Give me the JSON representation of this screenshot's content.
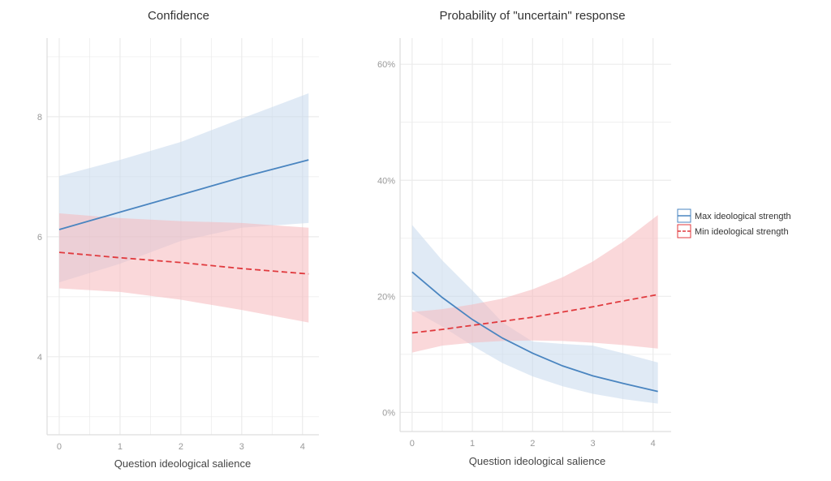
{
  "colors": {
    "max_line": "#4a85c0",
    "max_ribbon": "#c6d9ec",
    "min_line": "#e03a3e",
    "min_ribbon": "#f5b8bb",
    "grid": "#ebebeb",
    "axis": "#dddddd"
  },
  "legend": {
    "placement": "right",
    "items": [
      {
        "label": "Max ideological strength",
        "linetype": "solid",
        "series": "max"
      },
      {
        "label": "Min ideological strength",
        "linetype": "dashed",
        "series": "min"
      }
    ]
  },
  "chart_data": [
    {
      "type": "line",
      "title": "Confidence",
      "xlabel": "Question ideological salience",
      "ylabel": "",
      "xlim": [
        -0.2,
        4.27
      ],
      "ylim": [
        2.7,
        9.31
      ],
      "xticks": [
        0,
        1,
        2,
        3,
        4
      ],
      "xtick_labels": [
        "0",
        "1",
        "2",
        "3",
        "4"
      ],
      "yticks": [
        4,
        6,
        8
      ],
      "ytick_labels": [
        "4",
        "6",
        "8"
      ],
      "grid": true,
      "x": [
        0,
        1,
        2,
        3,
        4.1
      ],
      "series": [
        {
          "name": "Max ideological strength",
          "key": "max",
          "linetype": "solid",
          "values": [
            6.12,
            6.41,
            6.7,
            6.99,
            7.28
          ],
          "lower": [
            5.24,
            5.55,
            5.93,
            6.15,
            6.23
          ],
          "upper": [
            7.01,
            7.28,
            7.58,
            7.97,
            8.39
          ]
        },
        {
          "name": "Min ideological strength",
          "key": "min",
          "linetype": "dashed",
          "values": [
            5.74,
            5.65,
            5.57,
            5.47,
            5.38
          ],
          "lower": [
            5.14,
            5.08,
            4.95,
            4.78,
            4.57
          ],
          "upper": [
            6.39,
            6.31,
            6.26,
            6.23,
            6.15
          ]
        }
      ]
    },
    {
      "type": "line",
      "title": "Probability of \"uncertain\" response",
      "xlabel": "Question ideological salience",
      "ylabel": "",
      "xlim": [
        -0.2,
        4.3
      ],
      "ylim": [
        -0.033,
        0.645
      ],
      "xticks": [
        0,
        1,
        2,
        3,
        4
      ],
      "xtick_labels": [
        "0",
        "1",
        "2",
        "3",
        "4"
      ],
      "yticks": [
        0,
        0.2,
        0.4,
        0.6
      ],
      "ytick_labels": [
        "0%",
        "20%",
        "40%",
        "60%"
      ],
      "grid": true,
      "x": [
        0,
        0.5,
        1,
        1.5,
        2,
        2.5,
        3,
        3.5,
        4.08
      ],
      "series": [
        {
          "name": "Max ideological strength",
          "key": "max",
          "linetype": "solid",
          "values": [
            0.242,
            0.198,
            0.16,
            0.128,
            0.102,
            0.08,
            0.063,
            0.05,
            0.036
          ],
          "lower": [
            0.177,
            0.148,
            0.115,
            0.085,
            0.062,
            0.045,
            0.032,
            0.023,
            0.015
          ],
          "upper": [
            0.323,
            0.262,
            0.21,
            0.155,
            0.122,
            0.118,
            0.115,
            0.102,
            0.086
          ]
        },
        {
          "name": "Min ideological strength",
          "key": "min",
          "linetype": "dashed",
          "values": [
            0.137,
            0.143,
            0.15,
            0.157,
            0.164,
            0.173,
            0.182,
            0.192,
            0.203
          ],
          "lower": [
            0.103,
            0.115,
            0.12,
            0.123,
            0.124,
            0.123,
            0.12,
            0.116,
            0.11
          ],
          "upper": [
            0.173,
            0.178,
            0.186,
            0.196,
            0.212,
            0.233,
            0.26,
            0.294,
            0.34
          ]
        }
      ]
    }
  ]
}
